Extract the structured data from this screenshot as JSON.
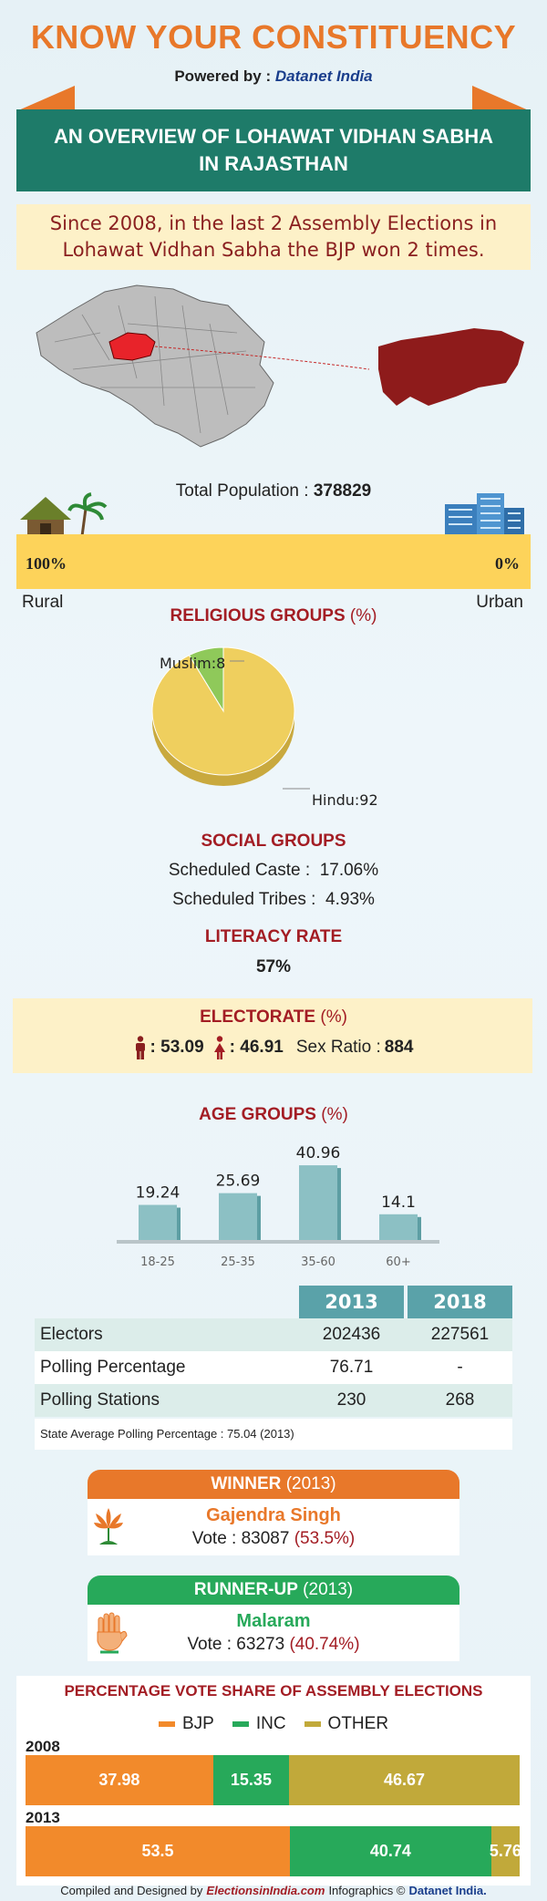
{
  "header": {
    "title": "KNOW YOUR CONSTITUENCY",
    "powered_prefix": "Powered by :",
    "powered_brand": "Datanet India"
  },
  "banner": "AN OVERVIEW OF LOHAWAT VIDHAN SABHA IN RAJASTHAN",
  "intro": "Since 2008, in the last 2 Assembly Elections in Lohawat Vidhan Sabha the BJP won 2 times.",
  "population": {
    "label": "Total Population :",
    "value": "378829",
    "rural_pct": "100%",
    "urban_pct": "0%",
    "rural_fraction": 1.0,
    "rural_label": "Rural",
    "urban_label": "Urban"
  },
  "religious": {
    "title": "RELIGIOUS GROUPS",
    "unit": "(%)",
    "muslim_label": "Muslim:8",
    "hindu_label": "Hindu:92",
    "chart_data": {
      "type": "pie",
      "slices": [
        {
          "name": "Hindu",
          "value": 92,
          "color": "#efcf5e"
        },
        {
          "name": "Muslim",
          "value": 8,
          "color": "#8fc95a"
        }
      ]
    }
  },
  "social": {
    "title": "SOCIAL GROUPS",
    "sc_label": "Scheduled Caste :",
    "sc_value": "17.06%",
    "st_label": "Scheduled Tribes :",
    "st_value": "4.93%"
  },
  "literacy": {
    "title": "LITERACY RATE",
    "value": "57%"
  },
  "electorate": {
    "title": "ELECTORATE",
    "unit": "(%)",
    "male": ": 53.09",
    "female": ": 46.91",
    "sex_ratio_label": "Sex Ratio :",
    "sex_ratio_value": "884",
    "male_color": "#8a1f1f",
    "female_color": "#a31d24"
  },
  "age": {
    "title": "AGE GROUPS",
    "unit": "(%)"
  },
  "chart_data": {
    "type": "bar",
    "categories": [
      "18-25",
      "25-35",
      "35-60",
      "60+"
    ],
    "values": [
      19.24,
      25.69,
      40.96,
      14.1
    ],
    "value_labels": [
      "19.24",
      "25.69",
      "40.96",
      "14.1"
    ],
    "color": "#8cc0c4"
  },
  "poll_table": {
    "years": [
      "2013",
      "2018"
    ],
    "rows": [
      {
        "label": "Electors",
        "v2013": "202436",
        "v2018": "227561"
      },
      {
        "label": "Polling Percentage",
        "v2013": "76.71",
        "v2018": "-"
      },
      {
        "label": "Polling Stations",
        "v2013": "230",
        "v2018": "268"
      }
    ],
    "state_avg": "State Average Polling Percentage : 75.04 (2013)"
  },
  "winner": {
    "head": "WINNER",
    "year": "(2013)",
    "name": "Gajendra Singh",
    "vote_label": "Vote : 83087",
    "vote_pct": "(53.5%)",
    "icon": "lotus-icon",
    "color": "#e8782a"
  },
  "runner": {
    "head": "RUNNER-UP",
    "year": "(2013)",
    "name": "Malaram",
    "vote_label": "Vote : 63273",
    "vote_pct": "(40.74%)",
    "icon": "hand-icon",
    "color": "#27a95a"
  },
  "vote_share": {
    "title": "PERCENTAGE VOTE SHARE OF ASSEMBLY ELECTIONS",
    "legend": [
      {
        "name": "BJP",
        "color": "#f28a2b"
      },
      {
        "name": "INC",
        "color": "#27a95a"
      },
      {
        "name": "OTHER",
        "color": "#c1a93a"
      }
    ],
    "years": [
      {
        "year": "2008",
        "segments": [
          {
            "party": "BJP",
            "value": 37.98,
            "label": "37.98"
          },
          {
            "party": "INC",
            "value": 15.35,
            "label": "15.35"
          },
          {
            "party": "OTHER",
            "value": 46.67,
            "label": "46.67"
          }
        ]
      },
      {
        "year": "2013",
        "segments": [
          {
            "party": "BJP",
            "value": 53.5,
            "label": "53.5"
          },
          {
            "party": "INC",
            "value": 40.74,
            "label": "40.74"
          },
          {
            "party": "OTHER",
            "value": 5.76,
            "label": "5.76"
          }
        ]
      }
    ]
  },
  "footer": {
    "prefix": "Compiled and Designed by",
    "eii": "ElectionsinIndia.com",
    "mid": "Infographics ©",
    "dni": "Datanet India."
  }
}
